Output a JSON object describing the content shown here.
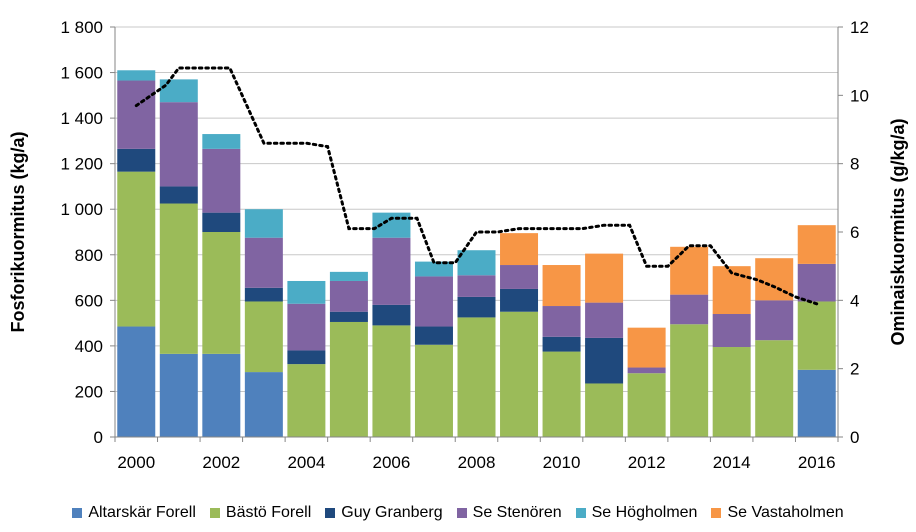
{
  "chart_data": {
    "type": "bar",
    "stacked": true,
    "categories": [
      "2000",
      "2001",
      "2002",
      "2003",
      "2004",
      "2005",
      "2006",
      "2007",
      "2008",
      "2009",
      "2010",
      "2011",
      "2012",
      "2013",
      "2014",
      "2015",
      "2016"
    ],
    "x_tick_labels": [
      "2000",
      "2002",
      "2004",
      "2006",
      "2008",
      "2010",
      "2012",
      "2014",
      "2016"
    ],
    "ylabel": "Fosforikuormitus (kg/a)",
    "y2label": "Ominaiskuormitus (g/kg/a)",
    "ylim": [
      0,
      1800
    ],
    "y2lim": [
      0,
      12
    ],
    "y_ticks": [
      "0",
      "200",
      "400",
      "600",
      "800",
      "1 000",
      "1 200",
      "1 400",
      "1 600",
      "1 800"
    ],
    "y_tick_values": [
      0,
      200,
      400,
      600,
      800,
      1000,
      1200,
      1400,
      1600,
      1800
    ],
    "y2_ticks": [
      "0",
      "2",
      "4",
      "6",
      "8",
      "10",
      "12"
    ],
    "y2_tick_values": [
      0,
      2,
      4,
      6,
      8,
      10,
      12
    ],
    "gridlines": true,
    "legend_position": "bottom",
    "series": [
      {
        "name": "Altarskär Forell",
        "color": "#4f81bd",
        "values": [
          485,
          365,
          365,
          285,
          0,
          0,
          0,
          0,
          0,
          0,
          0,
          0,
          0,
          0,
          0,
          0,
          295
        ]
      },
      {
        "name": "Bästö Forell",
        "color": "#9bbb59",
        "values": [
          680,
          660,
          535,
          310,
          320,
          505,
          490,
          405,
          525,
          550,
          375,
          235,
          280,
          495,
          395,
          425,
          300
        ]
      },
      {
        "name": "Guy Granberg",
        "color": "#1f497d",
        "values": [
          100,
          75,
          85,
          60,
          60,
          45,
          90,
          80,
          90,
          100,
          65,
          200,
          0,
          0,
          0,
          0,
          0
        ]
      },
      {
        "name": "Se Stenören",
        "color": "#8064a2",
        "values": [
          300,
          370,
          280,
          220,
          205,
          135,
          295,
          220,
          95,
          105,
          135,
          155,
          25,
          130,
          145,
          175,
          165
        ]
      },
      {
        "name": "Se Högholmen",
        "color": "#4bacc6",
        "values": [
          45,
          100,
          65,
          125,
          100,
          40,
          110,
          65,
          110,
          0,
          0,
          0,
          0,
          0,
          0,
          0,
          0
        ]
      },
      {
        "name": "Se Vastaholmen",
        "color": "#f79646",
        "values": [
          0,
          0,
          0,
          0,
          0,
          0,
          0,
          0,
          0,
          140,
          180,
          215,
          175,
          210,
          210,
          185,
          170
        ]
      }
    ],
    "line": {
      "name": "Ominaiskuormitus",
      "color": "#000000",
      "style": "dotted",
      "axis": "y2",
      "x": [
        2000,
        2000.7,
        2001,
        2001.3,
        2002,
        2002.2,
        2003,
        2003.6,
        2004,
        2004.5,
        2005,
        2005.6,
        2006,
        2006.6,
        2007,
        2007.5,
        2008,
        2008.5,
        2009,
        2009.5,
        2010,
        2010.5,
        2011,
        2011.6,
        2012,
        2012.5,
        2013,
        2013.5,
        2014,
        2014.6,
        2015,
        2015.5,
        2016
      ],
      "y": [
        9.7,
        10.3,
        10.8,
        10.8,
        10.8,
        10.8,
        8.6,
        8.6,
        8.6,
        8.5,
        6.1,
        6.1,
        6.4,
        6.4,
        5.1,
        5.1,
        6,
        6,
        6.1,
        6.1,
        6.1,
        6.1,
        6.2,
        6.2,
        5,
        5,
        5.6,
        5.6,
        4.8,
        4.6,
        4.4,
        4.1,
        3.9
      ]
    }
  }
}
